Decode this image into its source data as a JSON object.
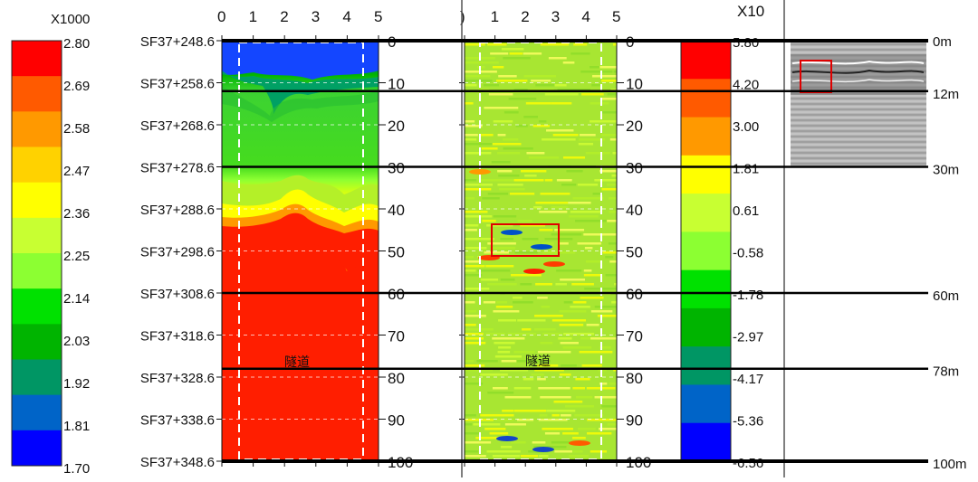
{
  "left_legend": {
    "multiplier": "X1000",
    "labels": [
      "2.80",
      "2.69",
      "2.58",
      "2.47",
      "2.36",
      "2.25",
      "2.14",
      "2.03",
      "1.92",
      "1.81",
      "1.70"
    ],
    "colors": [
      "#ff0000",
      "#ff5a00",
      "#ff9900",
      "#ffd200",
      "#ffff00",
      "#c8ff32",
      "#8cff32",
      "#00e100",
      "#00b400",
      "#009664",
      "#0064c8",
      "#0000ff"
    ]
  },
  "right_legend": {
    "multiplier": "X10",
    "labels": [
      "5.80",
      "4.20",
      "3.00",
      "1.81",
      "0.61",
      "-0.58",
      "-1.78",
      "-2.97",
      "-4.17",
      "-5.36",
      "-6.56"
    ],
    "colors": [
      "#ff0000",
      "#ff5a00",
      "#ff9900",
      "#ffff00",
      "#c8ff32",
      "#8cff32",
      "#00e100",
      "#00b400",
      "#009664",
      "#0064c8",
      "#0000ff"
    ]
  },
  "stations": [
    "SF37+248.6",
    "SF37+258.6",
    "SF37+268.6",
    "SF37+278.6",
    "SF37+288.6",
    "SF37+298.6",
    "SF37+308.6",
    "SF37+318.6",
    "SF37+328.6",
    "SF37+338.6",
    "SF37+348.6"
  ],
  "depth_ticks": [
    "0",
    "10",
    "20",
    "30",
    "40",
    "50",
    "60",
    "70",
    "80",
    "90",
    "100"
  ],
  "x_ticks": [
    "0",
    "1",
    "2",
    "3",
    "4",
    "5"
  ],
  "panel2_first_tick": ")",
  "tunnel_label": "隧道",
  "markers": [
    "0m",
    "12m",
    "30m",
    "60m",
    "78m",
    "100m"
  ],
  "marker_depths": [
    0,
    12,
    30,
    60,
    78,
    100
  ]
}
